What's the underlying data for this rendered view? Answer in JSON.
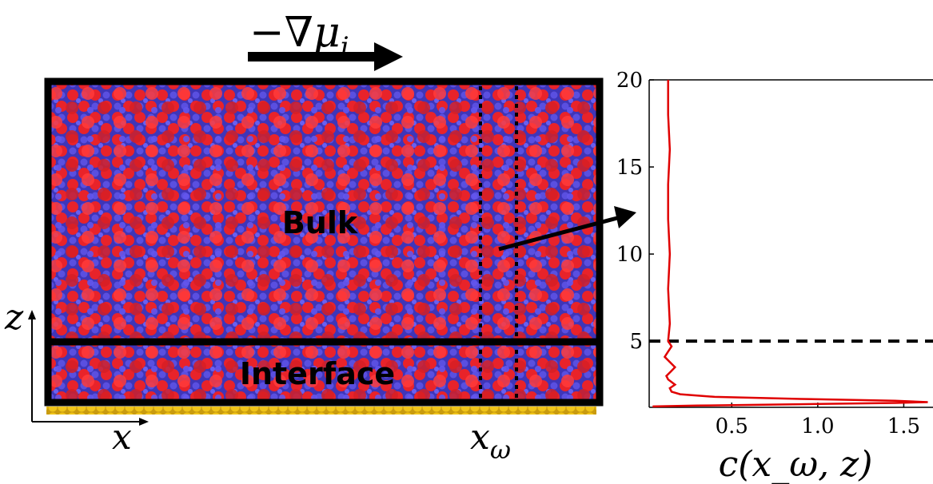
{
  "annotations": {
    "gradient_label": "−∇μ",
    "gradient_subscript": "i",
    "bulk_label": "Bulk",
    "interface_label": "Interface",
    "x_axis_label": "x",
    "z_axis_label": "z",
    "x_omega_label": "x",
    "x_omega_subscript": "ω"
  },
  "colors": {
    "particle_a": "#e8232a",
    "particle_b": "#5a4fe0",
    "substrate": "#f0c419",
    "frame": "#000000",
    "profile_line": "#e00000"
  },
  "chart_data": {
    "type": "line",
    "xlabel": "c(x_ω, z)",
    "ylabel": "",
    "xlim": [
      0.02,
      1.67
    ],
    "ylim": [
      1.2,
      20
    ],
    "xticks": [
      0.5,
      1.0,
      1.5
    ],
    "xtick_labels": [
      "0.5",
      "1.0",
      "1.5"
    ],
    "yticks": [
      5,
      10,
      15,
      20
    ],
    "ytick_labels": [
      "5",
      "10",
      "15",
      "20"
    ],
    "grid": false,
    "reference_line": {
      "y": 5,
      "style": "dashed"
    },
    "series": [
      {
        "points": [
          [
            0.04,
            1.25
          ],
          [
            0.3,
            1.3
          ],
          [
            0.9,
            1.38
          ],
          [
            1.45,
            1.45
          ],
          [
            1.64,
            1.5
          ],
          [
            1.45,
            1.58
          ],
          [
            0.9,
            1.68
          ],
          [
            0.4,
            1.8
          ],
          [
            0.2,
            1.95
          ],
          [
            0.15,
            2.1
          ],
          [
            0.14,
            2.3
          ],
          [
            0.17,
            2.5
          ],
          [
            0.13,
            2.8
          ],
          [
            0.12,
            3.0
          ],
          [
            0.15,
            3.3
          ],
          [
            0.17,
            3.5
          ],
          [
            0.14,
            3.8
          ],
          [
            0.11,
            4.1
          ],
          [
            0.13,
            4.4
          ],
          [
            0.15,
            4.7
          ],
          [
            0.13,
            5.0
          ],
          [
            0.14,
            6.0
          ],
          [
            0.13,
            8.0
          ],
          [
            0.14,
            10.0
          ],
          [
            0.13,
            12.0
          ],
          [
            0.13,
            14.0
          ],
          [
            0.14,
            16.0
          ],
          [
            0.13,
            18.0
          ],
          [
            0.13,
            20.0
          ]
        ]
      }
    ]
  }
}
